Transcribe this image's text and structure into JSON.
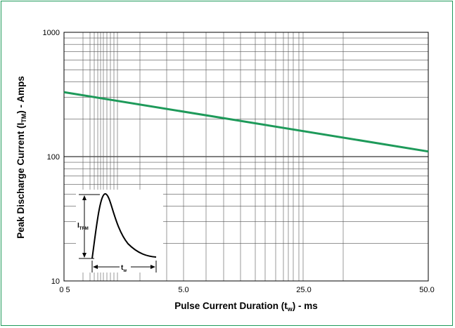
{
  "chart_data": {
    "type": "line",
    "title": "",
    "xlabel": {
      "main": "Pulse Current Duration (t",
      "sub": "w",
      "tail": ") - ms"
    },
    "ylabel": {
      "main": "Peak Discharge Current (I",
      "sub": "TM",
      "tail": ") - Amps"
    },
    "x_tick_labels": [
      "0 5",
      "5.0",
      "25.0",
      "50.0"
    ],
    "y_tick_labels": [
      "1000",
      "100",
      "10"
    ],
    "yscale": "log",
    "ylim": [
      10,
      1000
    ],
    "xlim": [
      0.5,
      50
    ],
    "grid": true,
    "line_color": "#1e9a5a",
    "series": [
      {
        "x": [
          0.5,
          50.0
        ],
        "y": [
          330,
          110
        ]
      }
    ],
    "inset": {
      "pulse_label_main": "I",
      "pulse_label_sub": "TRM",
      "width_label_main": "t",
      "width_label_sub": "w"
    }
  }
}
